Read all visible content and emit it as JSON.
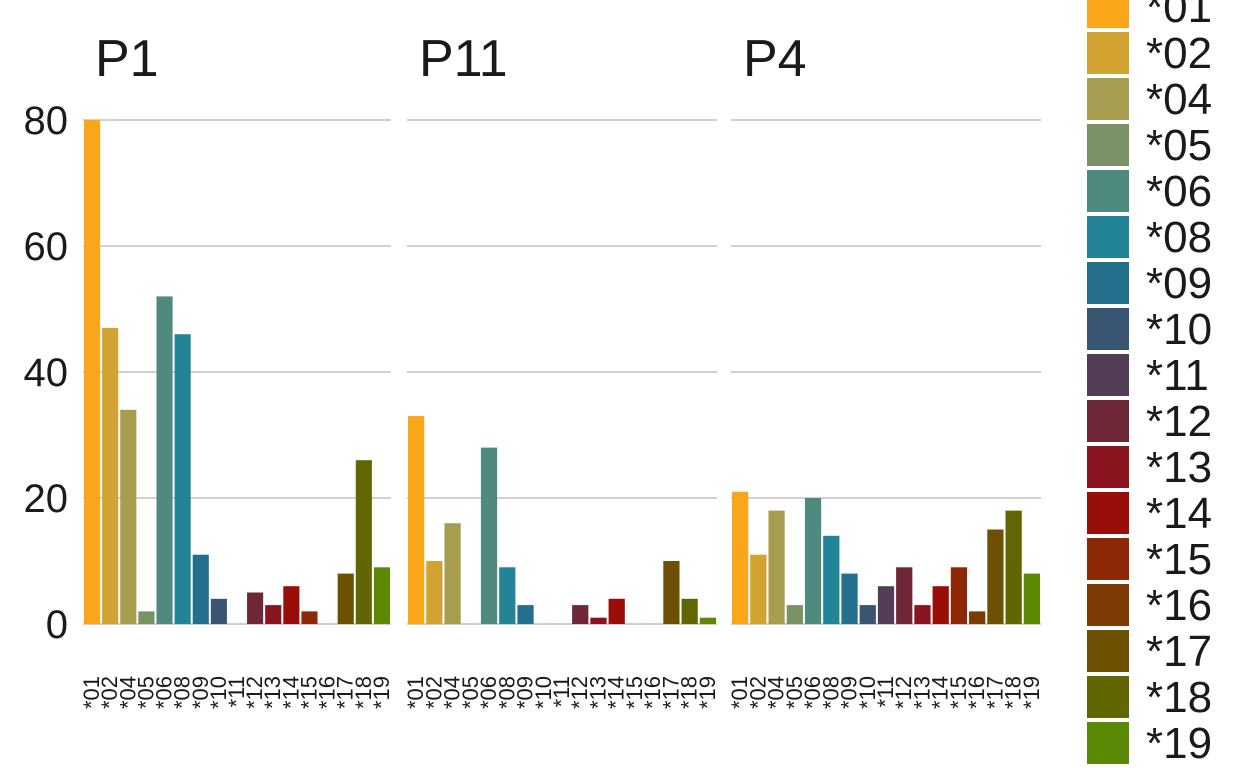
{
  "chart_data": {
    "type": "bar",
    "facet_titles": [
      "P1",
      "P11",
      "P4"
    ],
    "categories": [
      "*01",
      "*02",
      "*04",
      "*05",
      "*06",
      "*08",
      "*09",
      "*10",
      "*11",
      "*12",
      "*13",
      "*14",
      "*15",
      "*16",
      "*17",
      "*18",
      "*19"
    ],
    "series": [
      {
        "panel": "P1",
        "values": [
          80,
          47,
          34,
          2,
          52,
          46,
          11,
          4,
          0,
          5,
          3,
          6,
          2,
          0,
          8,
          26,
          9
        ]
      },
      {
        "panel": "P11",
        "values": [
          33,
          10,
          16,
          0,
          28,
          9,
          3,
          0,
          0,
          3,
          1,
          4,
          0,
          0,
          10,
          4,
          1
        ]
      },
      {
        "panel": "P4",
        "values": [
          21,
          11,
          18,
          3,
          20,
          14,
          8,
          3,
          6,
          9,
          3,
          6,
          9,
          2,
          15,
          18,
          8
        ]
      }
    ],
    "colors": [
      "#F9A61A",
      "#D3A332",
      "#A79D51",
      "#7A9265",
      "#4F8A7E",
      "#228496",
      "#246F8C",
      "#3A5571",
      "#523E55",
      "#6E2736",
      "#8A1520",
      "#9A0E0A",
      "#8C2805",
      "#7D3A02",
      "#6D5002",
      "#626602",
      "#5B8805"
    ],
    "ylim": [
      0,
      80
    ],
    "yticks": [
      0,
      20,
      40,
      60,
      80
    ],
    "grid": "horizontal",
    "legend": "right",
    "xlabel": "",
    "ylabel": ""
  }
}
